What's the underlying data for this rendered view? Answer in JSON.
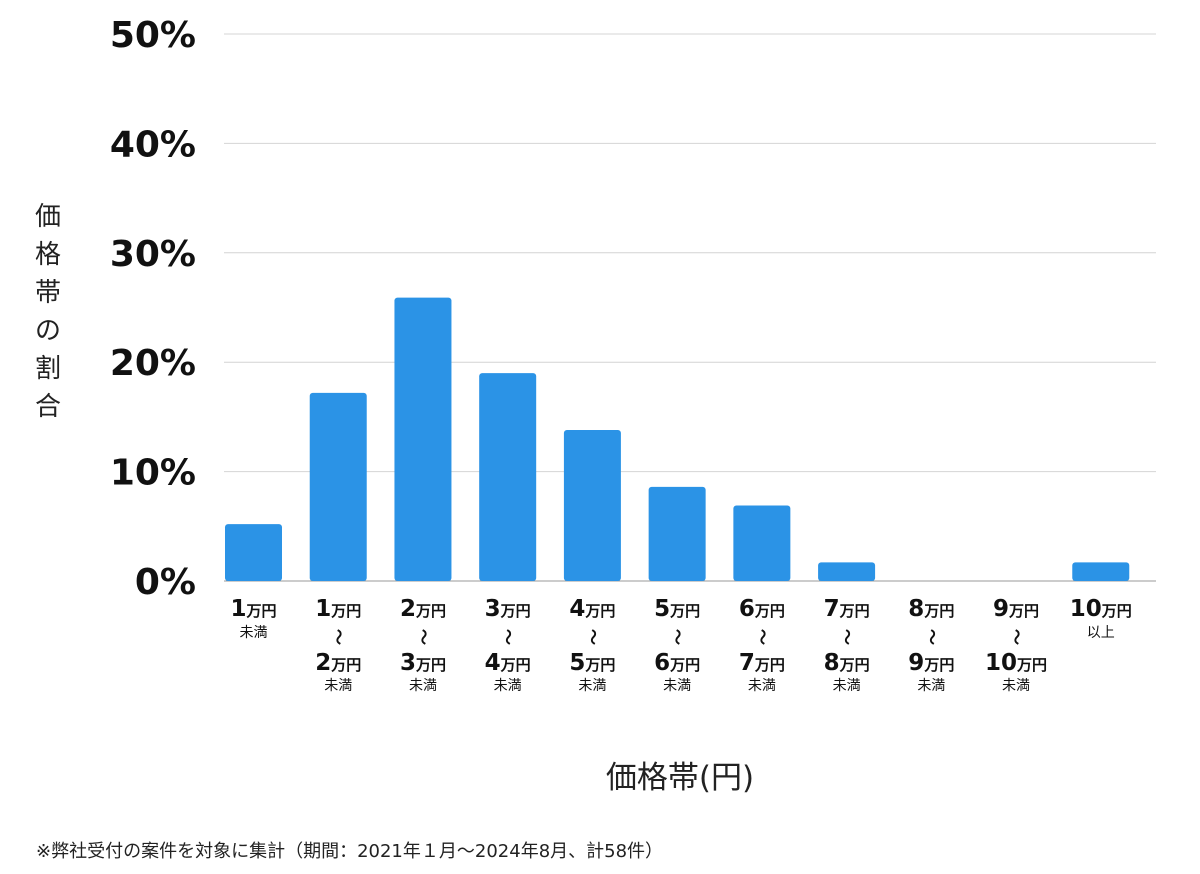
{
  "chart_data": {
    "type": "bar",
    "ylabel": "価格帯の割合",
    "xlabel": "価格帯(円)",
    "ylim": [
      0,
      50
    ],
    "yticks": [
      "0%",
      "10%",
      "20%",
      "30%",
      "40%",
      "50%"
    ],
    "ytick_values": [
      0,
      10,
      20,
      30,
      40,
      50
    ],
    "grid": true,
    "bar_color": "#2b93e6",
    "categories": [
      {
        "lines": [
          {
            "num": "1",
            "unit": "万円"
          }
        ],
        "suffix": "未満"
      },
      {
        "lines": [
          {
            "num": "1",
            "unit": "万円"
          },
          {
            "num": "2",
            "unit": "万円"
          }
        ],
        "suffix": "未満"
      },
      {
        "lines": [
          {
            "num": "2",
            "unit": "万円"
          },
          {
            "num": "3",
            "unit": "万円"
          }
        ],
        "suffix": "未満"
      },
      {
        "lines": [
          {
            "num": "3",
            "unit": "万円"
          },
          {
            "num": "4",
            "unit": "万円"
          }
        ],
        "suffix": "未満"
      },
      {
        "lines": [
          {
            "num": "4",
            "unit": "万円"
          },
          {
            "num": "5",
            "unit": "万円"
          }
        ],
        "suffix": "未満"
      },
      {
        "lines": [
          {
            "num": "5",
            "unit": "万円"
          },
          {
            "num": "6",
            "unit": "万円"
          }
        ],
        "suffix": "未満"
      },
      {
        "lines": [
          {
            "num": "6",
            "unit": "万円"
          },
          {
            "num": "7",
            "unit": "万円"
          }
        ],
        "suffix": "未満"
      },
      {
        "lines": [
          {
            "num": "7",
            "unit": "万円"
          },
          {
            "num": "8",
            "unit": "万円"
          }
        ],
        "suffix": "未満"
      },
      {
        "lines": [
          {
            "num": "8",
            "unit": "万円"
          },
          {
            "num": "9",
            "unit": "万円"
          }
        ],
        "suffix": "未満"
      },
      {
        "lines": [
          {
            "num": "9",
            "unit": "万円"
          },
          {
            "num": "10",
            "unit": "万円"
          }
        ],
        "suffix": "未満"
      },
      {
        "lines": [
          {
            "num": "10",
            "unit": "万円"
          }
        ],
        "suffix": "以上"
      }
    ],
    "range_separator": "〜",
    "values": [
      5.2,
      17.2,
      25.9,
      19.0,
      13.8,
      8.6,
      6.9,
      1.7,
      0,
      0,
      1.7
    ]
  },
  "footnote": "※弊社受付の案件を対象に集計（期間：2021年１月〜2024年8月、計58件）"
}
